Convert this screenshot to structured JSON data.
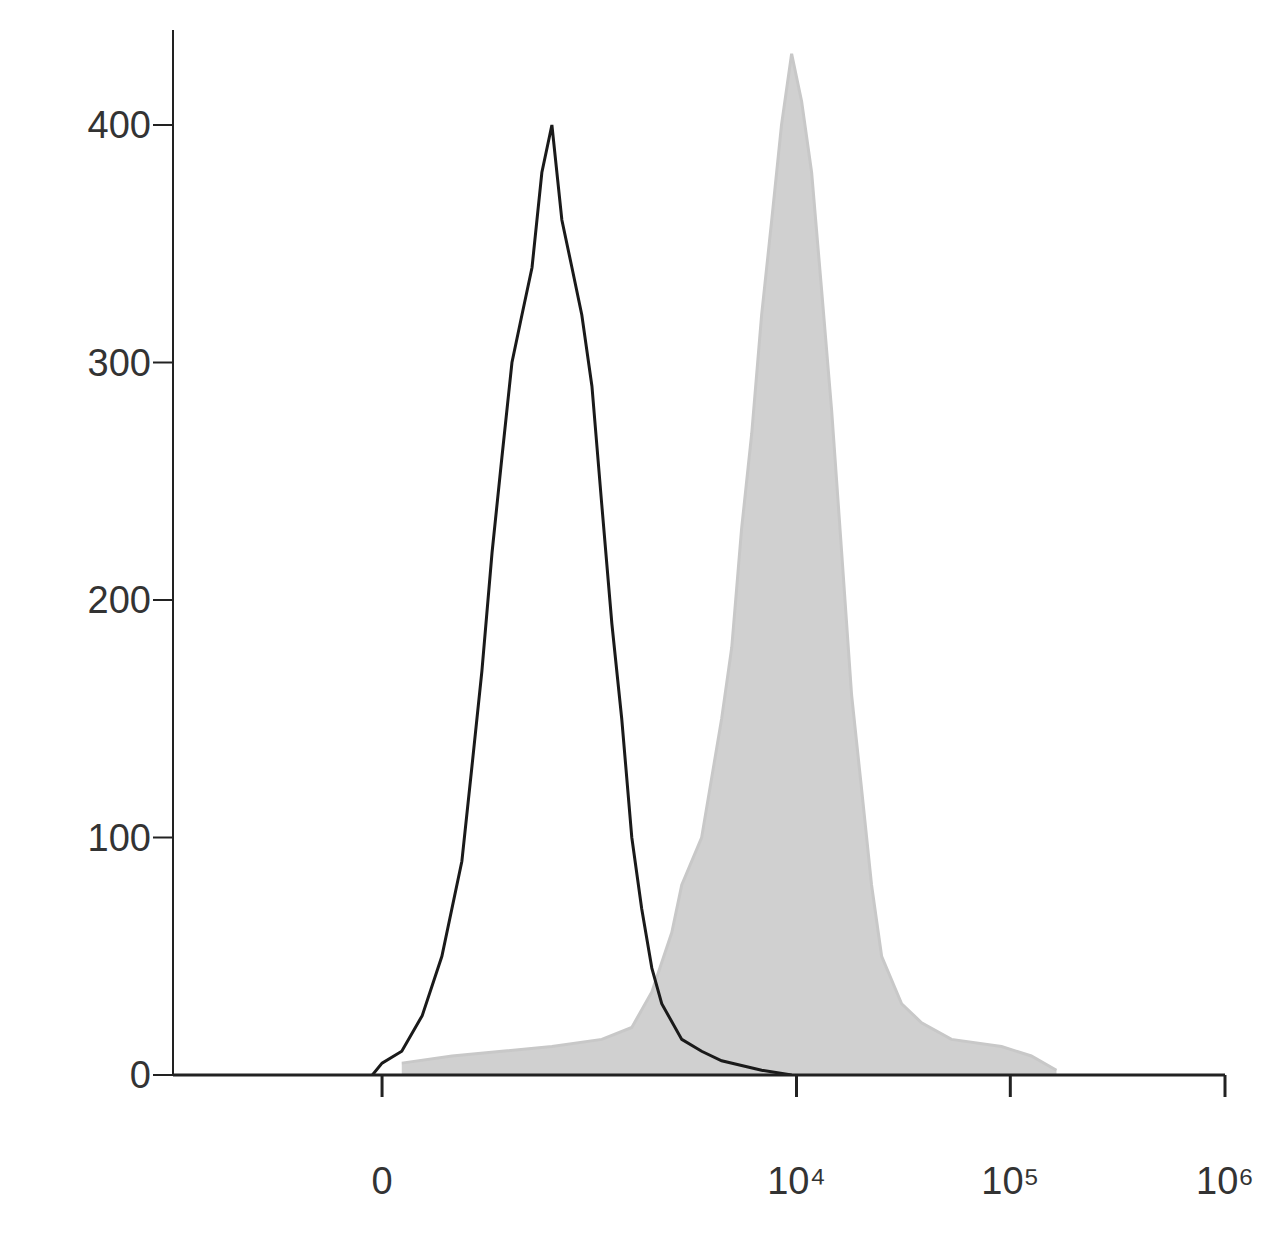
{
  "chart_data": {
    "type": "histogram",
    "xlim": [
      -1000,
      1000000
    ],
    "xticks": [
      {
        "value": 0,
        "label": "0"
      },
      {
        "value": 10000,
        "label": "10⁴"
      },
      {
        "value": 100000,
        "label": "10⁵"
      },
      {
        "value": 1000000,
        "label": "10⁶"
      }
    ],
    "ylim": [
      0,
      440
    ],
    "yticks": [
      0,
      100,
      200,
      300,
      400
    ],
    "grid": false,
    "series": [
      {
        "type": "area",
        "color": "#c8c8c8",
        "x": [
          28,
          133,
          311,
          616,
          1136,
          1612,
          2027,
          2539,
          2838,
          3541,
          4416,
          4934,
          5498,
          6140,
          6843,
          7640,
          8497,
          9484,
          10567,
          11781,
          13138,
          14625,
          16303,
          18147,
          20230,
          22503,
          25087,
          31107,
          38556,
          53157,
          90993,
          125307,
          164100
        ],
        "values": [
          5,
          8,
          10,
          12,
          15,
          20,
          35,
          60,
          80,
          100,
          150,
          180,
          230,
          270,
          320,
          360,
          400,
          430,
          410,
          380,
          330,
          280,
          220,
          160,
          120,
          80,
          50,
          30,
          22,
          15,
          12,
          8,
          2
        ]
      },
      {
        "type": "line",
        "color": "#1a1a1a",
        "x": [
          -13,
          0,
          28,
          64,
          107,
          161,
          193,
          228,
          268,
          311,
          360,
          414,
          475,
          541,
          616,
          699,
          792,
          894,
          1010,
          1136,
          1279,
          1435,
          1612,
          1806,
          2027,
          2267,
          2838,
          3541,
          4416,
          6843,
          9484
        ],
        "values": [
          0,
          5,
          10,
          25,
          50,
          90,
          130,
          170,
          220,
          260,
          300,
          320,
          340,
          380,
          400,
          360,
          340,
          320,
          290,
          240,
          190,
          150,
          100,
          70,
          45,
          30,
          15,
          10,
          6,
          2,
          0
        ]
      }
    ]
  }
}
